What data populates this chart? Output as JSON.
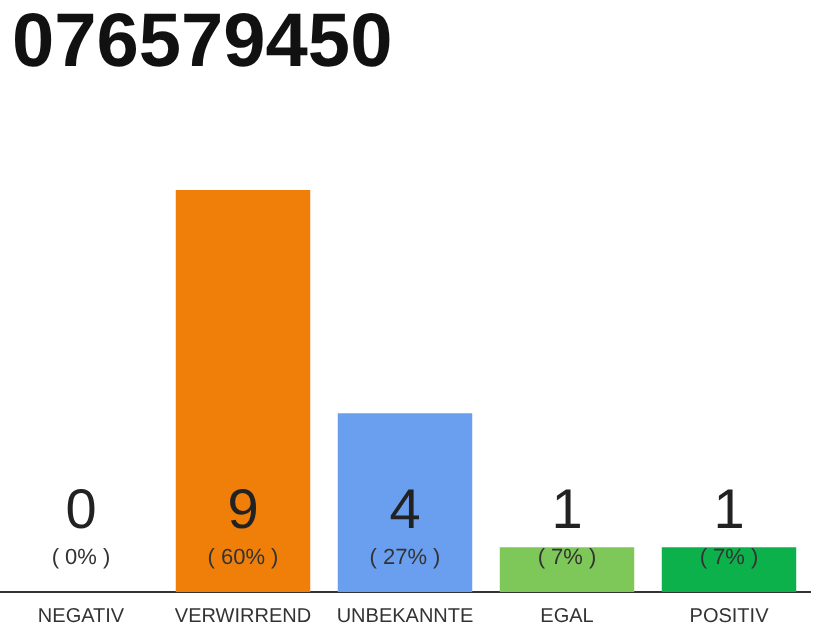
{
  "chart_data": {
    "type": "bar",
    "title": "076579450",
    "categories": [
      "NEGATIV",
      "VERWIRREND",
      "UNBEKANNTE",
      "EGAL",
      "POSITIV"
    ],
    "values": [
      0,
      9,
      4,
      1,
      1
    ],
    "colors": [
      "#9e9e9e",
      "#f07f0a",
      "#6a9ff0",
      "#7ec85a",
      "#0db14b"
    ],
    "ylim": [
      0,
      9
    ],
    "tick_labels": "x",
    "data_labels": true,
    "grid": false,
    "legend": false,
    "annotations": [
      "( 0% )",
      "( 60% )",
      "( 27% )",
      "( 7% )",
      "( 7% )"
    ]
  }
}
